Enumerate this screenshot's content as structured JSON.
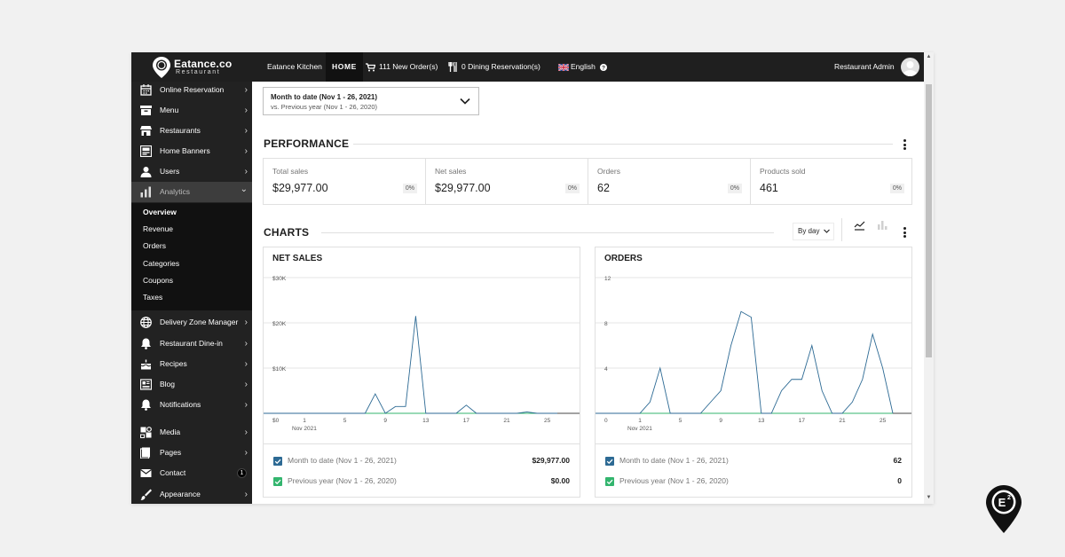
{
  "brand": {
    "name": "Eatance.co",
    "sub": "Restaurant"
  },
  "topbar": {
    "kitchen": "Eatance Kitchen",
    "home": "HOME",
    "orders": "111 New Order(s)",
    "reservations": "0 Dining Reservation(s)",
    "language": "English",
    "user": "Restaurant Admin"
  },
  "sidebar": {
    "items": [
      {
        "label": "Online Reservation",
        "icon": "calendar-icon"
      },
      {
        "label": "Menu",
        "icon": "menu-box-icon"
      },
      {
        "label": "Restaurants",
        "icon": "store-icon"
      },
      {
        "label": "Home Banners",
        "icon": "banner-icon"
      },
      {
        "label": "Users",
        "icon": "user-icon"
      },
      {
        "label": "Analytics",
        "icon": "bar-chart-icon"
      }
    ],
    "analytics_sub": [
      "Overview",
      "Revenue",
      "Orders",
      "Categories",
      "Coupons",
      "Taxes"
    ],
    "items2": [
      {
        "label": "Delivery Zone Manager",
        "icon": "globe-icon"
      },
      {
        "label": "Restaurant Dine-in",
        "icon": "bell-icon"
      },
      {
        "label": "Recipes",
        "icon": "cake-icon"
      },
      {
        "label": "Blog",
        "icon": "newspaper-icon"
      },
      {
        "label": "Notifications",
        "icon": "bell-icon"
      },
      {
        "label": "Media",
        "icon": "media-icon"
      },
      {
        "label": "Pages",
        "icon": "pages-icon"
      },
      {
        "label": "Contact",
        "icon": "mail-icon",
        "badge": "1"
      },
      {
        "label": "Appearance",
        "icon": "brush-icon"
      }
    ]
  },
  "date_range": {
    "main": "Month to date (Nov 1 - 26, 2021)",
    "compare": "vs. Previous year (Nov 1 - 26, 2020)"
  },
  "performance": {
    "title": "PERFORMANCE",
    "kpis": [
      {
        "label": "Total sales",
        "value": "$29,977.00",
        "change": "0%"
      },
      {
        "label": "Net sales",
        "value": "$29,977.00",
        "change": "0%"
      },
      {
        "label": "Orders",
        "value": "62",
        "change": "0%"
      },
      {
        "label": "Products sold",
        "value": "461",
        "change": "0%"
      }
    ]
  },
  "charts": {
    "title": "CHARTS",
    "interval": "By day",
    "interval_icon": "chevron-down-icon",
    "line_icon": "line-chart-icon",
    "bar_icon": "bar-chart-icon"
  },
  "colors": {
    "current": "#2d6a94",
    "previous": "#33b56e",
    "sidebar": "#222222",
    "topbar": "#1f1f1f"
  },
  "chart_data": [
    {
      "type": "line",
      "title": "NET SALES",
      "x": [
        1,
        2,
        3,
        4,
        5,
        6,
        7,
        8,
        9,
        10,
        11,
        12,
        13,
        14,
        15,
        16,
        17,
        18,
        19,
        20,
        21,
        22,
        23,
        24,
        25,
        26
      ],
      "x_ticks": [
        "1",
        "5",
        "9",
        "13",
        "17",
        "21",
        "25"
      ],
      "x_sublabel": "Nov 2021",
      "y_ticks": [
        "$0",
        "$10K",
        "$20K",
        "$30K"
      ],
      "ylim": [
        0,
        30000
      ],
      "series": [
        {
          "name": "Month to date (Nov 1 - 26, 2021)",
          "color": "#2d6a94",
          "values": [
            0,
            0,
            0,
            0,
            0,
            0,
            0,
            4300,
            0,
            1500,
            1500,
            21500,
            0,
            0,
            0,
            0,
            1800,
            0,
            0,
            0,
            0,
            0,
            300,
            0,
            0,
            0
          ],
          "total": "$29,977.00"
        },
        {
          "name": "Previous year (Nov 1 - 26, 2020)",
          "color": "#33b56e",
          "values": [
            0,
            0,
            0,
            0,
            0,
            0,
            0,
            0,
            0,
            0,
            0,
            0,
            0,
            0,
            0,
            0,
            0,
            0,
            0,
            0,
            0,
            0,
            0,
            0,
            0,
            0
          ],
          "total": "$0.00"
        }
      ],
      "grid": true
    },
    {
      "type": "line",
      "title": "ORDERS",
      "x": [
        1,
        2,
        3,
        4,
        5,
        6,
        7,
        8,
        9,
        10,
        11,
        12,
        13,
        14,
        15,
        16,
        17,
        18,
        19,
        20,
        21,
        22,
        23,
        24,
        25,
        26
      ],
      "x_ticks": [
        "1",
        "5",
        "9",
        "13",
        "17",
        "21",
        "25"
      ],
      "x_sublabel": "Nov 2021",
      "y_ticks": [
        "0",
        "4",
        "8",
        "12"
      ],
      "ylim": [
        0,
        12
      ],
      "series": [
        {
          "name": "Month to date (Nov 1 - 26, 2021)",
          "color": "#2d6a94",
          "values": [
            0,
            1,
            4,
            0,
            0,
            0,
            0,
            1,
            2,
            6,
            9,
            8.5,
            0,
            0,
            2,
            3,
            3,
            6,
            2,
            0,
            0,
            1,
            3,
            7,
            4,
            0
          ],
          "total": "62"
        },
        {
          "name": "Previous year (Nov 1 - 26, 2020)",
          "color": "#33b56e",
          "values": [
            0,
            0,
            0,
            0,
            0,
            0,
            0,
            0,
            0,
            0,
            0,
            0,
            0,
            0,
            0,
            0,
            0,
            0,
            0,
            0,
            0,
            0,
            0,
            0,
            0,
            0
          ],
          "total": "0"
        }
      ],
      "grid": true
    }
  ]
}
